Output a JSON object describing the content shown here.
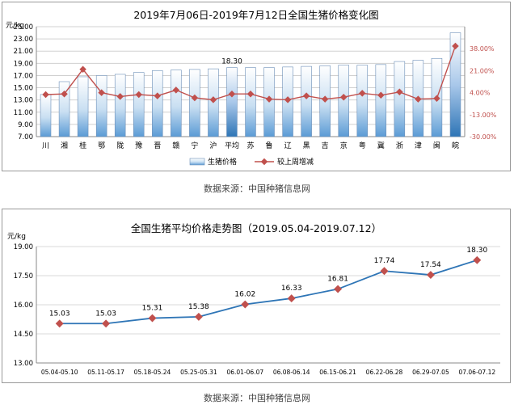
{
  "chart_data": [
    {
      "type": "bar+line",
      "title": "2019年7月06日-2019年7月12日全国生猪价格变化图",
      "unit_left": "元/kg",
      "categories": [
        "川",
        "湘",
        "桂",
        "鄂",
        "陇",
        "豫",
        "晋",
        "赣",
        "宁",
        "沪",
        "平均",
        "苏",
        "鲁",
        "辽",
        "黑",
        "吉",
        "京",
        "粤",
        "冀",
        "浙",
        "津",
        "闽",
        "皖"
      ],
      "y_left_ticks": [
        "7.00",
        "9.00",
        "11.00",
        "13.00",
        "15.00",
        "17.00",
        "19.00",
        "21.00",
        "23.00",
        "25.00"
      ],
      "ylim_left": [
        7,
        25
      ],
      "y_right_ticks": [
        "38.00%",
        "21.00%",
        "4.00%",
        "-13.00%",
        "-30.00%"
      ],
      "ylim_right": [
        -30,
        55
      ],
      "avg_label": "18.30",
      "series": [
        {
          "name": "生猪价格",
          "type": "bar",
          "color": "#5b9bd5",
          "values": [
            13.9,
            16.0,
            16.8,
            17.0,
            17.2,
            17.5,
            17.8,
            17.9,
            18.0,
            18.1,
            18.3,
            18.3,
            18.3,
            18.4,
            18.5,
            18.6,
            18.7,
            18.7,
            18.8,
            19.3,
            19.5,
            19.8,
            24.0
          ]
        },
        {
          "name": "较上周增减",
          "type": "line",
          "color": "#c0504d",
          "values": [
            2.5,
            3.0,
            22.0,
            4.0,
            1.0,
            2.5,
            1.5,
            6.0,
            0.0,
            -1.5,
            3.0,
            3.0,
            -1.0,
            -1.5,
            1.5,
            -1.0,
            0.5,
            3.5,
            2.0,
            4.5,
            -1.0,
            -0.5,
            40.0
          ]
        }
      ],
      "legend": "bottom"
    },
    {
      "type": "line",
      "title": "全国生猪平均价格走势图（2019.05.04-2019.07.12）",
      "ylabel": "元/kg",
      "categories": [
        "05.04-05.10",
        "05.11-05.17",
        "05.18-05.24",
        "05.25-05.31",
        "06.01-06.07",
        "06.08-06.14",
        "06.15-06.21",
        "06.22-06.28",
        "06.29-07.05",
        "07.06-07.12"
      ],
      "values": [
        15.03,
        15.03,
        15.31,
        15.38,
        16.02,
        16.33,
        16.81,
        17.74,
        17.54,
        18.3
      ],
      "data_labels": [
        "15.03",
        "15.03",
        "15.31",
        "15.38",
        "16.02",
        "16.33",
        "16.81",
        "17.74",
        "17.54",
        "18.30"
      ],
      "y_ticks": [
        "13.00",
        "14.50",
        "16.00",
        "17.50",
        "19.00"
      ],
      "ylim": [
        13,
        19
      ],
      "line_color": "#2e75b6",
      "marker_color": "#c0504d"
    }
  ],
  "sources": {
    "top": "数据来源：中国种猪信息网",
    "bottom": "数据来源：中国种猪信息网"
  }
}
